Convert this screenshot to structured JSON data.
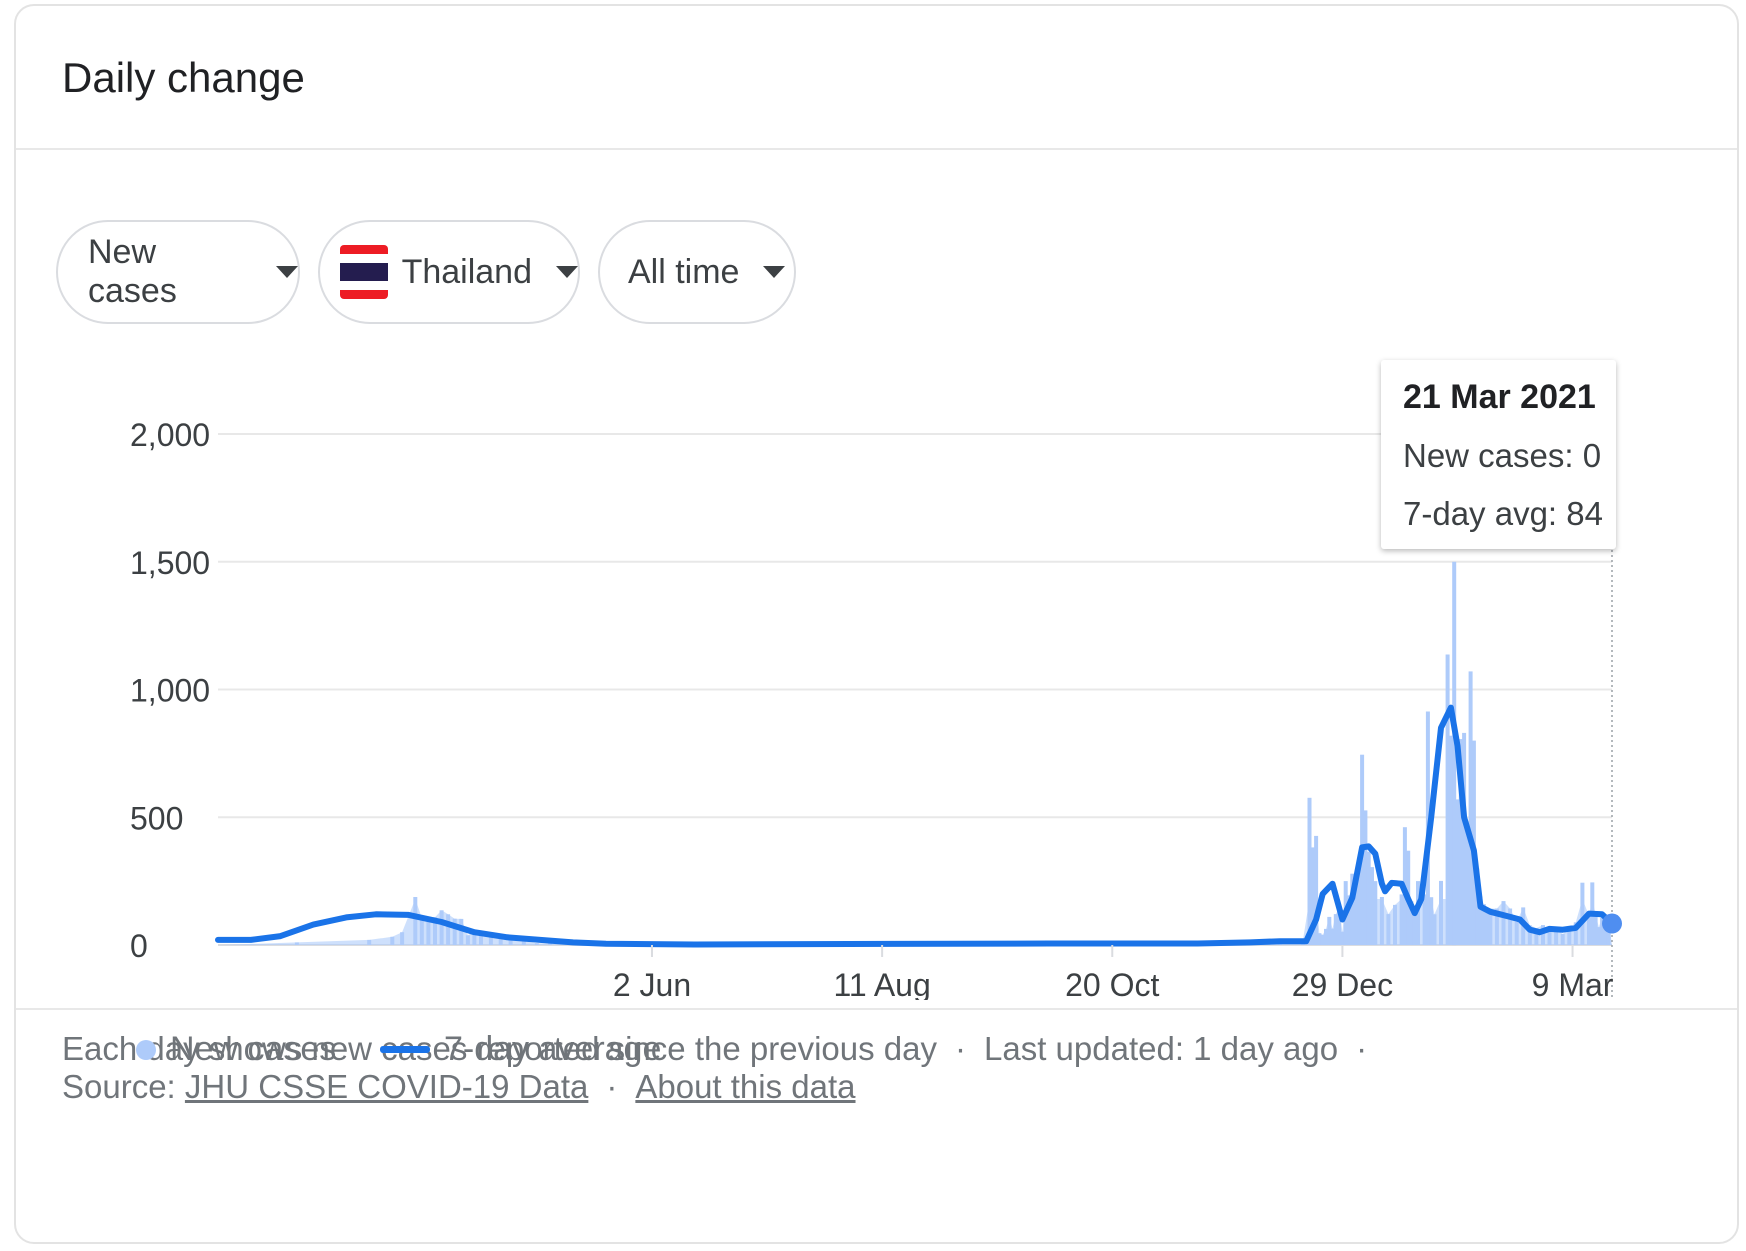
{
  "header": {
    "title": "Daily change"
  },
  "filters": {
    "metric": "New cases",
    "country": "Thailand",
    "range": "All time",
    "flag_colors": [
      "#ED1C24",
      "#FFFFFF",
      "#241D4F",
      "#FFFFFF",
      "#ED1C24"
    ]
  },
  "tooltip": {
    "date": "21 Mar 2021",
    "new_cases": "New cases: 0",
    "avg": "7-day avg: 84"
  },
  "legend": {
    "bars": "New cases",
    "line": "7-day average"
  },
  "colors": {
    "bar": "#aecbfa",
    "line": "#1a73e8",
    "grid": "#e8e8e8"
  },
  "footer": {
    "note": "Each day shows new cases reported since the previous day",
    "updated": "Last updated: 1 day ago",
    "source_label": "Source:",
    "source_link": "JHU CSSE COVID-19 Data",
    "about_link": "About this data"
  },
  "chart_data": {
    "type": "bar",
    "title": "",
    "xlabel": "",
    "ylabel": "",
    "x_range": [
      "2020-01-22",
      "2021-03-21"
    ],
    "ylim": [
      0,
      2000
    ],
    "yticks": [
      0,
      500,
      1000,
      1500,
      2000
    ],
    "ytick_labels": [
      "0",
      "500",
      "1,000",
      "1,500",
      "2,000"
    ],
    "xticks": [
      {
        "date": "2020-06-02",
        "label": "2 Jun"
      },
      {
        "date": "2020-08-11",
        "label": "11 Aug"
      },
      {
        "date": "2020-10-20",
        "label": "20 Oct"
      },
      {
        "date": "2020-12-29",
        "label": "29 Dec"
      },
      {
        "date": "2021-03-09",
        "label": "9 Mar"
      }
    ],
    "grid": true,
    "legend_position": "bottom-left",
    "series": [
      {
        "name": "New cases",
        "type": "bar",
        "points": [
          [
            "2020-01-22",
            0
          ],
          [
            "2020-02-15",
            10
          ],
          [
            "2020-03-08",
            20
          ],
          [
            "2020-03-15",
            32
          ],
          [
            "2020-03-18",
            50
          ],
          [
            "2020-03-22",
            188
          ],
          [
            "2020-03-24",
            106
          ],
          [
            "2020-03-26",
            111
          ],
          [
            "2020-03-28",
            109
          ],
          [
            "2020-03-30",
            136
          ],
          [
            "2020-04-01",
            120
          ],
          [
            "2020-04-03",
            103
          ],
          [
            "2020-04-05",
            102
          ],
          [
            "2020-04-07",
            38
          ],
          [
            "2020-04-09",
            54
          ],
          [
            "2020-04-11",
            45
          ],
          [
            "2020-04-14",
            34
          ],
          [
            "2020-04-17",
            28
          ],
          [
            "2020-04-20",
            27
          ],
          [
            "2020-04-24",
            15
          ],
          [
            "2020-04-28",
            7
          ],
          [
            "2020-05-02",
            6
          ],
          [
            "2020-05-08",
            3
          ],
          [
            "2020-05-15",
            3
          ],
          [
            "2020-05-25",
            0
          ],
          [
            "2020-06-15",
            1
          ],
          [
            "2020-07-05",
            5
          ],
          [
            "2020-08-01",
            3
          ],
          [
            "2020-09-01",
            4
          ],
          [
            "2020-10-01",
            3
          ],
          [
            "2020-11-01",
            8
          ],
          [
            "2020-11-20",
            6
          ],
          [
            "2020-12-01",
            10
          ],
          [
            "2020-12-10",
            5
          ],
          [
            "2020-12-17",
            20
          ],
          [
            "2020-12-19",
            576
          ],
          [
            "2020-12-20",
            382
          ],
          [
            "2020-12-21",
            427
          ],
          [
            "2020-12-22",
            46
          ],
          [
            "2020-12-23",
            40
          ],
          [
            "2020-12-24",
            63
          ],
          [
            "2020-12-25",
            110
          ],
          [
            "2020-12-26",
            64
          ],
          [
            "2020-12-27",
            121
          ],
          [
            "2020-12-28",
            144
          ],
          [
            "2020-12-29",
            52
          ],
          [
            "2020-12-30",
            250
          ],
          [
            "2020-12-31",
            194
          ],
          [
            "2021-01-01",
            279
          ],
          [
            "2021-01-02",
            216
          ],
          [
            "2021-01-03",
            315
          ],
          [
            "2021-01-04",
            745
          ],
          [
            "2021-01-05",
            527
          ],
          [
            "2021-01-06",
            365
          ],
          [
            "2021-01-07",
            305
          ],
          [
            "2021-01-08",
            250
          ],
          [
            "2021-01-10",
            188
          ],
          [
            "2021-01-12",
            121
          ],
          [
            "2021-01-14",
            157
          ],
          [
            "2021-01-16",
            198
          ],
          [
            "2021-01-17",
            461
          ],
          [
            "2021-01-18",
            369
          ],
          [
            "2021-01-19",
            171
          ],
          [
            "2021-01-20",
            126
          ],
          [
            "2021-01-21",
            250
          ],
          [
            "2021-01-23",
            198
          ],
          [
            "2021-01-24",
            914
          ],
          [
            "2021-01-25",
            187
          ],
          [
            "2021-01-26",
            120
          ],
          [
            "2021-01-28",
            251
          ],
          [
            "2021-01-30",
            1137
          ],
          [
            "2021-01-31",
            819
          ],
          [
            "2021-02-01",
            1500
          ],
          [
            "2021-02-02",
            570
          ],
          [
            "2021-02-03",
            806
          ],
          [
            "2021-02-04",
            830
          ],
          [
            "2021-02-05",
            440
          ],
          [
            "2021-02-06",
            1071
          ],
          [
            "2021-02-07",
            800
          ],
          [
            "2021-02-08",
            300
          ],
          [
            "2021-02-09",
            190
          ],
          [
            "2021-02-10",
            160
          ],
          [
            "2021-02-11",
            127
          ],
          [
            "2021-02-12",
            142
          ],
          [
            "2021-02-14",
            143
          ],
          [
            "2021-02-16",
            172
          ],
          [
            "2021-02-18",
            143
          ],
          [
            "2021-02-20",
            90
          ],
          [
            "2021-02-22",
            147
          ],
          [
            "2021-02-24",
            77
          ],
          [
            "2021-02-26",
            66
          ],
          [
            "2021-02-28",
            78
          ],
          [
            "2021-03-02",
            57
          ],
          [
            "2021-03-04",
            63
          ],
          [
            "2021-03-06",
            43
          ],
          [
            "2021-03-08",
            63
          ],
          [
            "2021-03-10",
            89
          ],
          [
            "2021-03-12",
            244
          ],
          [
            "2021-03-14",
            115
          ],
          [
            "2021-03-15",
            245
          ],
          [
            "2021-03-16",
            120
          ],
          [
            "2021-03-17",
            70
          ],
          [
            "2021-03-18",
            108
          ],
          [
            "2021-03-19",
            99
          ],
          [
            "2021-03-20",
            97
          ],
          [
            "2021-03-21",
            0
          ]
        ]
      },
      {
        "name": "7-day average",
        "type": "line",
        "points": [
          [
            "2020-01-22",
            20
          ],
          [
            "2020-02-01",
            20
          ],
          [
            "2020-02-10",
            35
          ],
          [
            "2020-02-20",
            80
          ],
          [
            "2020-03-01",
            108
          ],
          [
            "2020-03-10",
            120
          ],
          [
            "2020-03-20",
            118
          ],
          [
            "2020-03-30",
            90
          ],
          [
            "2020-04-09",
            50
          ],
          [
            "2020-04-19",
            30
          ],
          [
            "2020-04-29",
            20
          ],
          [
            "2020-05-09",
            10
          ],
          [
            "2020-05-19",
            5
          ],
          [
            "2020-06-15",
            2
          ],
          [
            "2020-08-01",
            4
          ],
          [
            "2020-10-01",
            6
          ],
          [
            "2020-11-15",
            6
          ],
          [
            "2020-12-01",
            10
          ],
          [
            "2020-12-10",
            15
          ],
          [
            "2020-12-18",
            15
          ],
          [
            "2020-12-21",
            100
          ],
          [
            "2020-12-23",
            200
          ],
          [
            "2020-12-26",
            240
          ],
          [
            "2020-12-29",
            100
          ],
          [
            "2021-01-01",
            185
          ],
          [
            "2021-01-04",
            382
          ],
          [
            "2021-01-06",
            386
          ],
          [
            "2021-01-08",
            357
          ],
          [
            "2021-01-10",
            240
          ],
          [
            "2021-01-11",
            210
          ],
          [
            "2021-01-13",
            243
          ],
          [
            "2021-01-16",
            240
          ],
          [
            "2021-01-18",
            180
          ],
          [
            "2021-01-20",
            125
          ],
          [
            "2021-01-22",
            180
          ],
          [
            "2021-01-25",
            500
          ],
          [
            "2021-01-28",
            850
          ],
          [
            "2021-01-31",
            929
          ],
          [
            "2021-02-02",
            780
          ],
          [
            "2021-02-04",
            500
          ],
          [
            "2021-02-07",
            370
          ],
          [
            "2021-02-09",
            150
          ],
          [
            "2021-02-12",
            130
          ],
          [
            "2021-02-15",
            120
          ],
          [
            "2021-02-18",
            110
          ],
          [
            "2021-02-21",
            100
          ],
          [
            "2021-02-24",
            60
          ],
          [
            "2021-02-27",
            50
          ],
          [
            "2021-03-02",
            63
          ],
          [
            "2021-03-06",
            60
          ],
          [
            "2021-03-10",
            67
          ],
          [
            "2021-03-14",
            123
          ],
          [
            "2021-03-18",
            120
          ],
          [
            "2021-03-21",
            84
          ]
        ]
      }
    ]
  }
}
